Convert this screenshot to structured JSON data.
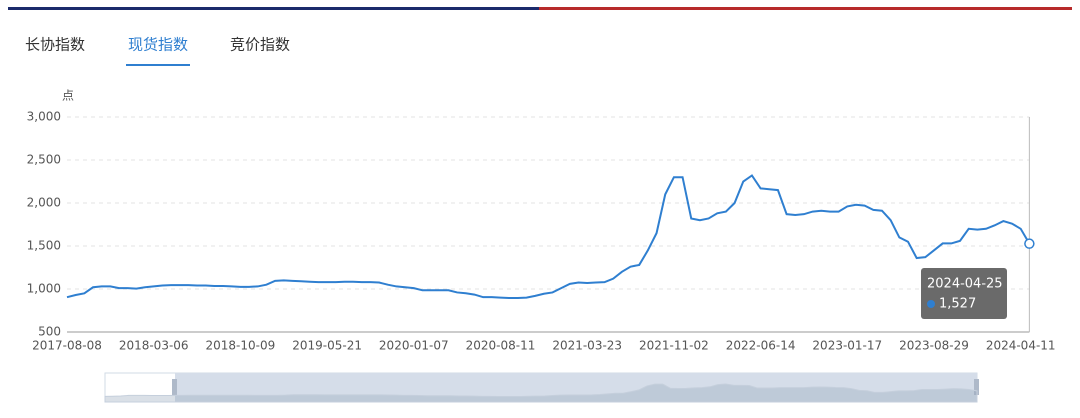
{
  "tabs": [
    "长协指数",
    "现货指数",
    "竞价指数"
  ],
  "active_tab": 1,
  "chart_data": {
    "type": "line",
    "y_unit": "点",
    "categories": [
      "2017-08-08",
      null,
      null,
      null,
      null,
      null,
      null,
      null,
      null,
      null,
      "2018-03-06",
      null,
      null,
      null,
      null,
      null,
      null,
      null,
      null,
      null,
      "2018-10-09",
      null,
      null,
      null,
      null,
      null,
      null,
      null,
      null,
      null,
      "2019-05-21",
      null,
      null,
      null,
      null,
      null,
      null,
      null,
      null,
      null,
      "2020-01-07",
      null,
      null,
      null,
      null,
      null,
      null,
      null,
      null,
      null,
      "2020-08-11",
      null,
      null,
      null,
      null,
      null,
      null,
      null,
      null,
      null,
      "2021-03-23",
      null,
      null,
      null,
      null,
      null,
      null,
      null,
      null,
      null,
      "2021-11-02",
      null,
      null,
      null,
      null,
      null,
      null,
      null,
      null,
      null,
      "2022-06-14",
      null,
      null,
      null,
      null,
      null,
      null,
      null,
      null,
      null,
      "2023-01-17",
      null,
      null,
      null,
      null,
      null,
      null,
      null,
      null,
      null,
      "2023-08-29",
      null,
      null,
      null,
      null,
      null,
      null,
      null,
      null,
      null,
      "2024-04-11",
      "2024-04-25"
    ],
    "series": [
      {
        "color": "#2f7fd0",
        "values": [
          905,
          930,
          950,
          1020,
          1030,
          1030,
          1010,
          1010,
          1005,
          1020,
          1030,
          1040,
          1045,
          1045,
          1045,
          1040,
          1040,
          1035,
          1035,
          1030,
          1025,
          1025,
          1030,
          1050,
          1095,
          1100,
          1095,
          1090,
          1085,
          1080,
          1080,
          1080,
          1085,
          1085,
          1080,
          1080,
          1075,
          1050,
          1030,
          1020,
          1010,
          985,
          985,
          985,
          985,
          960,
          950,
          935,
          905,
          905,
          900,
          895,
          895,
          900,
          920,
          945,
          960,
          1010,
          1060,
          1075,
          1070,
          1075,
          1080,
          1120,
          1200,
          1260,
          1280,
          1450,
          1650,
          2100,
          2300,
          2300,
          1820,
          1800,
          1820,
          1880,
          1900,
          2000,
          2250,
          2320,
          2170,
          2160,
          2150,
          1870,
          1860,
          1870,
          1900,
          1910,
          1900,
          1900,
          1960,
          1980,
          1970,
          1920,
          1910,
          1800,
          1600,
          1550,
          1360,
          1370,
          1450,
          1530,
          1530,
          1560,
          1700,
          1690,
          1700,
          1740,
          1790,
          1760,
          1700,
          1527
        ]
      }
    ],
    "ylim": [
      500,
      3000
    ],
    "yticks": [
      500,
      {
        "value": 1000,
        "label": "1,000"
      },
      {
        "value": 1500,
        "label": "1,500"
      },
      {
        "value": 2000,
        "label": "2,000"
      },
      {
        "value": 2500,
        "label": "2,500"
      },
      {
        "value": 3000,
        "label": "3,000"
      }
    ],
    "grid": true,
    "tooltip": {
      "index": 111,
      "value_label": "1,527"
    }
  }
}
